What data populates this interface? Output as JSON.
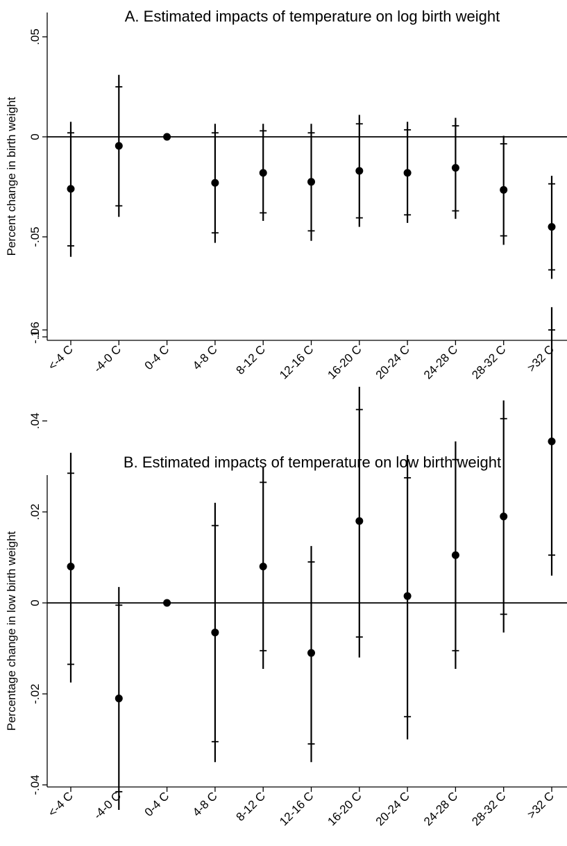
{
  "chart_data": [
    {
      "type": "scatter",
      "subtype": "point estimates with confidence intervals",
      "title": "A. Estimated impacts of temperature on log birth weight",
      "xlabel": "",
      "ylabel": "Percent change in birth weight",
      "categories": [
        "<-4 C",
        "-4-0 C",
        "0-4 C",
        "4-8 C",
        "8-12 C",
        "12-16 C",
        "16-20 C",
        "20-24 C",
        "24-28 C",
        "28-32 C",
        ">32 C"
      ],
      "yticks": [
        ".05",
        "0",
        "-.05",
        "-.1"
      ],
      "ytick_values": [
        0.05,
        0,
        -0.05,
        -0.1
      ],
      "ylim": [
        -0.1,
        0.05
      ],
      "series": [
        {
          "estimate": [
            -0.026,
            -0.0045,
            0,
            -0.023,
            -0.018,
            -0.0225,
            -0.017,
            -0.018,
            -0.0155,
            -0.0265,
            -0.045
          ],
          "ci95_low": [
            -0.06,
            -0.04,
            0,
            -0.053,
            -0.042,
            -0.052,
            -0.045,
            -0.043,
            -0.041,
            -0.054,
            -0.071
          ],
          "ci95_high": [
            0.0075,
            0.031,
            0,
            0.0065,
            0.0065,
            0.0065,
            0.011,
            0.0075,
            0.0095,
            0.0005,
            -0.0195
          ],
          "ci90_low": [
            -0.0545,
            -0.0345,
            0,
            -0.048,
            -0.038,
            -0.047,
            -0.0405,
            -0.039,
            -0.037,
            -0.0495,
            -0.0665
          ],
          "ci90_high": [
            0.002,
            0.025,
            0,
            0.002,
            0.003,
            0.002,
            0.0065,
            0.0035,
            0.0055,
            -0.0035,
            -0.0235
          ]
        }
      ],
      "zero_line": true,
      "grid": false
    },
    {
      "type": "scatter",
      "subtype": "point estimates with confidence intervals",
      "title": "B. Estimated impacts of temperature on low birth weight",
      "xlabel": "",
      "ylabel": "Percentage change in low birth weight",
      "categories": [
        "<-4 C",
        "-4-0 C",
        "0-4 C",
        "4-8 C",
        "8-12 C",
        "12-16 C",
        "16-20 C",
        "20-24 C",
        "24-28 C",
        "28-32 C",
        ">32 C"
      ],
      "yticks": [
        ".06",
        ".04",
        ".02",
        "0",
        "-.02",
        "-.04"
      ],
      "ytick_values": [
        0.06,
        0.04,
        0.02,
        0,
        -0.02,
        -0.04
      ],
      "ylim": [
        -0.046,
        0.068
      ],
      "series": [
        {
          "estimate": [
            0.008,
            -0.021,
            0,
            -0.0065,
            0.008,
            -0.011,
            0.018,
            0.0015,
            0.0105,
            0.019,
            0.0355
          ],
          "ci95_low": [
            -0.0175,
            -0.0455,
            0,
            -0.035,
            -0.0145,
            -0.035,
            -0.012,
            -0.03,
            -0.0145,
            -0.0065,
            0.006
          ],
          "ci95_high": [
            0.033,
            0.0035,
            0,
            0.022,
            0.03,
            0.0125,
            0.0475,
            0.0325,
            0.0355,
            0.0445,
            0.065
          ],
          "ci90_low": [
            -0.0135,
            -0.0415,
            0,
            -0.0305,
            -0.0105,
            -0.031,
            -0.0075,
            -0.025,
            -0.0105,
            -0.0025,
            0.0105
          ],
          "ci90_high": [
            0.0285,
            -0.0005,
            0,
            0.017,
            0.0265,
            0.009,
            0.0425,
            0.0275,
            0.0315,
            0.0405,
            0.06
          ]
        }
      ],
      "zero_line": true,
      "grid": false
    }
  ]
}
